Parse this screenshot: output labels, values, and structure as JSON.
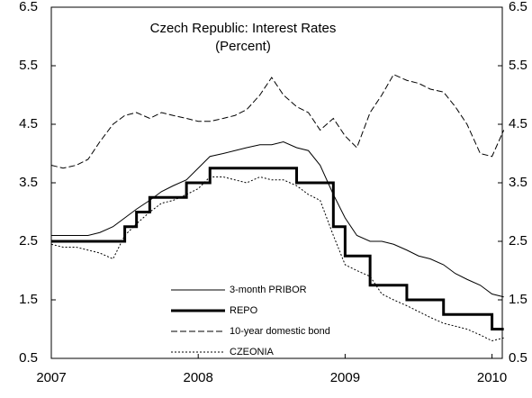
{
  "chart_data": {
    "type": "line",
    "title": "Czech Republic: Interest Rates",
    "subtitle": "(Percent)",
    "x": [
      2007.0,
      2007.08,
      2007.17,
      2007.25,
      2007.33,
      2007.42,
      2007.5,
      2007.58,
      2007.67,
      2007.75,
      2007.83,
      2007.92,
      2008.0,
      2008.08,
      2008.17,
      2008.25,
      2008.33,
      2008.42,
      2008.5,
      2008.58,
      2008.67,
      2008.75,
      2008.83,
      2008.92,
      2009.0,
      2009.08,
      2009.17,
      2009.25,
      2009.33,
      2009.42,
      2009.5,
      2009.58,
      2009.67,
      2009.75,
      2009.83,
      2009.92,
      2010.0,
      2010.08
    ],
    "xlim": [
      2007,
      2010.07
    ],
    "xticks": [
      2007,
      2008,
      2009,
      2010
    ],
    "ylim": [
      0.5,
      6.5
    ],
    "yticks": [
      0.5,
      1.5,
      2.5,
      3.5,
      4.5,
      5.5,
      6.5
    ],
    "y2lim": [
      0.5,
      6.5
    ],
    "y2ticks": [
      0.5,
      1.5,
      2.5,
      3.5,
      4.5,
      5.5,
      6.5
    ],
    "legend_position": "bottom",
    "series": [
      {
        "name": "3-month PRIBOR",
        "color": "#000000",
        "line_style": "solid",
        "values": [
          2.6,
          2.6,
          2.6,
          2.6,
          2.65,
          2.75,
          2.9,
          3.05,
          3.2,
          3.35,
          3.45,
          3.55,
          3.75,
          3.95,
          4.0,
          4.05,
          4.1,
          4.15,
          4.15,
          4.2,
          4.1,
          4.05,
          3.8,
          3.3,
          2.9,
          2.6,
          2.5,
          2.5,
          2.45,
          2.35,
          2.25,
          2.2,
          2.1,
          1.95,
          1.85,
          1.75,
          1.6,
          1.55
        ]
      },
      {
        "name": "REPO",
        "color": "#000000",
        "line_style": "thick-step",
        "values": [
          2.5,
          2.5,
          2.5,
          2.5,
          2.5,
          2.5,
          2.75,
          3.0,
          3.25,
          3.25,
          3.25,
          3.5,
          3.5,
          3.75,
          3.75,
          3.75,
          3.75,
          3.75,
          3.75,
          3.75,
          3.5,
          3.5,
          3.5,
          2.75,
          2.25,
          2.25,
          1.75,
          1.75,
          1.75,
          1.5,
          1.5,
          1.5,
          1.25,
          1.25,
          1.25,
          1.25,
          1.0,
          1.0
        ]
      },
      {
        "name": "10-year domestic bond",
        "color": "#000000",
        "line_style": "long-dash",
        "values": [
          3.8,
          3.75,
          3.8,
          3.9,
          4.2,
          4.5,
          4.65,
          4.7,
          4.6,
          4.7,
          4.65,
          4.6,
          4.55,
          4.55,
          4.6,
          4.65,
          4.75,
          5.0,
          5.3,
          5.0,
          4.8,
          4.7,
          4.4,
          4.6,
          4.3,
          4.1,
          4.7,
          5.0,
          5.35,
          5.25,
          5.2,
          5.1,
          5.05,
          4.8,
          4.5,
          4.0,
          3.95,
          4.4
        ]
      },
      {
        "name": "CZEONIA",
        "color": "#000000",
        "line_style": "short-dash",
        "values": [
          2.45,
          2.4,
          2.4,
          2.35,
          2.3,
          2.2,
          2.6,
          2.8,
          3.0,
          3.15,
          3.2,
          3.3,
          3.4,
          3.6,
          3.6,
          3.55,
          3.5,
          3.6,
          3.55,
          3.55,
          3.45,
          3.3,
          3.2,
          2.6,
          2.1,
          2.0,
          1.9,
          1.6,
          1.5,
          1.4,
          1.3,
          1.2,
          1.1,
          1.05,
          1.0,
          0.9,
          0.8,
          0.85
        ]
      }
    ]
  }
}
